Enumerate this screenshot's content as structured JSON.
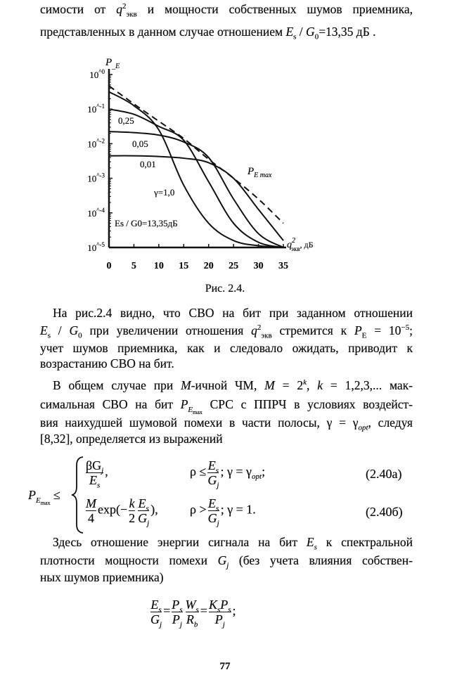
{
  "top_text": {
    "line1": [
      "симости от ",
      "q",
      "2",
      "экв",
      " и мощности собственных шумов приемника,"
    ],
    "line2": [
      "представленных в данном случае отношением ",
      "E",
      "s",
      " / ",
      "G",
      "0",
      "=13,35 дБ ."
    ]
  },
  "chart_data": {
    "type": "line",
    "title": "",
    "ylabel": "P_E",
    "xlabel": "q²экв, дБ",
    "x_tick_labels": [
      "0",
      "5",
      "10",
      "15",
      "20",
      "25",
      "30",
      "35"
    ],
    "y_tick_labels": [
      "10^0",
      "10^-1",
      "10^-2",
      "10^-3",
      "10^-4",
      "10^-5"
    ],
    "y_scale": "log",
    "xlim": [
      0,
      35
    ],
    "ylim": [
      1e-05,
      1
    ],
    "grid": false,
    "annotation": "Es / G0=13,35дБ",
    "x": [
      0,
      5,
      10,
      15,
      20,
      25,
      30,
      35
    ],
    "series": [
      {
        "name": "PE max",
        "style": "dashed",
        "log10_values": [
          -0.33,
          -0.85,
          -1.35,
          -1.85,
          -2.45,
          -3.0,
          -3.6,
          -4.3
        ]
      },
      {
        "name": "γ=1,0",
        "style": "solid",
        "log10_values": [
          -0.5,
          -0.9,
          -1.6,
          -3.2,
          -4.3,
          -4.8,
          -4.95,
          -5.0
        ]
      },
      {
        "name": "0,25",
        "style": "solid",
        "log10_values": [
          -1.0,
          -1.15,
          -1.5,
          -1.9,
          -3.1,
          -4.3,
          -4.85,
          -5.0
        ]
      },
      {
        "name": "0,05",
        "style": "solid",
        "log10_values": [
          -1.65,
          -1.68,
          -1.75,
          -1.95,
          -2.4,
          -3.6,
          -4.6,
          -5.0
        ]
      },
      {
        "name": "0,01",
        "style": "solid",
        "log10_values": [
          -2.35,
          -2.35,
          -2.37,
          -2.42,
          -2.55,
          -3.0,
          -3.9,
          -4.8
        ]
      }
    ],
    "series_label_texts": {
      "pemax": "P",
      "pemax_sub": "E max",
      "g1": "γ=1,0",
      "g025": "0,25",
      "g005": "0,05",
      "g001": "0,01"
    }
  },
  "caption": "Рис. 2.4.",
  "para1": {
    "l1": "На рис.2.4 видно, что СВО на бит при заданном отношении",
    "l2": [
      "E",
      "s",
      " / ",
      "G",
      "0",
      " при увеличении отношения ",
      "q",
      "2",
      "экв",
      " стремится к ",
      "P",
      "E",
      " = 10",
      "−5",
      ";"
    ],
    "l3": "учет шумов приемника, как и следовало ожидать, приводит к",
    "l4": "возрастанию СВО на бит."
  },
  "para2": {
    "l1": [
      "В общем случае при ",
      "M",
      "-ичной ЧМ, ",
      "M",
      " = 2",
      "k",
      ", ",
      "k",
      " = 1,2,3,... мак-"
    ],
    "l2": [
      "симальная СВО на бит ",
      "P",
      "E",
      "max",
      " СРС с ППРЧ в условиях воздейст-"
    ],
    "l3": [
      "вия наихудшей шумовой помехи в части полосы, ",
      "γ = γ",
      "opt",
      ", следуя"
    ],
    "l4": "[8,32], определяется из выражений"
  },
  "formula_240": {
    "lhs": "P",
    "lhs_sub": "E",
    "lhs_subsub": "max",
    "rel": "≤",
    "a_num": "βG",
    "a_num_sub": "j",
    "a_den": "E",
    "a_den_sub": "s",
    "a_comma": ",",
    "a_cond": "ρ ≤",
    "a_cond_num": "E",
    "a_cond_num_sub": "s",
    "a_cond_den": "G",
    "a_cond_den_sub": "j",
    "a_gamma": "; γ = γ",
    "a_gamma_sub": "opt",
    "a_end": ";",
    "a_number": "(2.40а)",
    "b_num": "M",
    "b_den": "4",
    "b_exp": "exp(−",
    "b_k": "k",
    "b_2": "2",
    "b_close": "),",
    "b_cond": "ρ >",
    "b_gamma": "; γ = 1.",
    "b_number": "(2.40б)"
  },
  "para3": {
    "l1": [
      "Здесь отношение энергии сигнала на бит ",
      "E",
      "s",
      " к спектральной"
    ],
    "l2": [
      "плотности мощности помехи ",
      "G",
      "j",
      " (без учета влияния собствен-"
    ],
    "l3": "ных шумов приемника)"
  },
  "formula_es": {
    "f1n": "E",
    "f1ns": "s",
    "f1d": "G",
    "f1ds": "j",
    "eq": "=",
    "f2n": "P",
    "f2ns": "s",
    "f2d": "P",
    "f2ds": "j",
    "f3n": "W",
    "f3ns": "s",
    "f3d": "R",
    "f3ds": "b",
    "f4n": "K",
    "f4ns": "s",
    "f4n2": "P",
    "f4n2s": "s",
    "f4d": "P",
    "f4ds": "j",
    "end": ";"
  },
  "page_number": "77"
}
